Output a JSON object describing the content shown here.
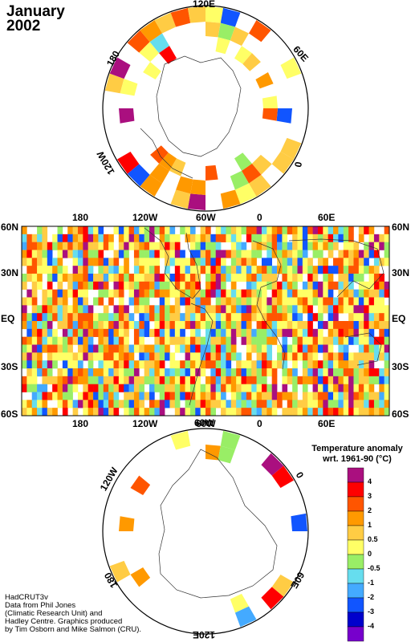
{
  "title": {
    "month": "January",
    "year": "2002"
  },
  "north_polar": {
    "labels": {
      "top": "120E",
      "right": "60E",
      "bottom_right": "0",
      "left": "180",
      "bottom_left": "120W"
    }
  },
  "world_map": {
    "top_lon_labels": [
      "180",
      "120W",
      "60W",
      "0",
      "60E"
    ],
    "bottom_lon_labels": [
      "180",
      "120W",
      "60W",
      "0",
      "60E"
    ],
    "lat_labels": [
      "60N",
      "30N",
      "EQ",
      "30S",
      "60S"
    ]
  },
  "south_polar": {
    "labels": {
      "top_left": "120W",
      "top": "60W",
      "top_right": "0",
      "bottom_left": "180",
      "bottom": "120E",
      "bottom_right": "60E"
    }
  },
  "legend": {
    "title_line1": "Temperature anomaly",
    "title_line2": "wrt. 1961-90  (°C)",
    "ticks": [
      "4",
      "3",
      "2",
      "1",
      "0.5",
      "0",
      "-0.5",
      "-1",
      "-2",
      "-3",
      "-4"
    ],
    "colors": [
      "#aa0f7f",
      "#ff0000",
      "#ff5500",
      "#ff9900",
      "#ffcc44",
      "#ffff66",
      "#99ee66",
      "#66ddee",
      "#44aaff",
      "#1155ff",
      "#0000cc",
      "#7700cc"
    ]
  },
  "credits": [
    "HadCRUT3v",
    "Data from Phil Jones",
    "(Climatic Research Unit) and",
    "Hadley Centre.  Graphics produced",
    "by Tim Osborn and Mike Salmon (CRU)."
  ]
}
